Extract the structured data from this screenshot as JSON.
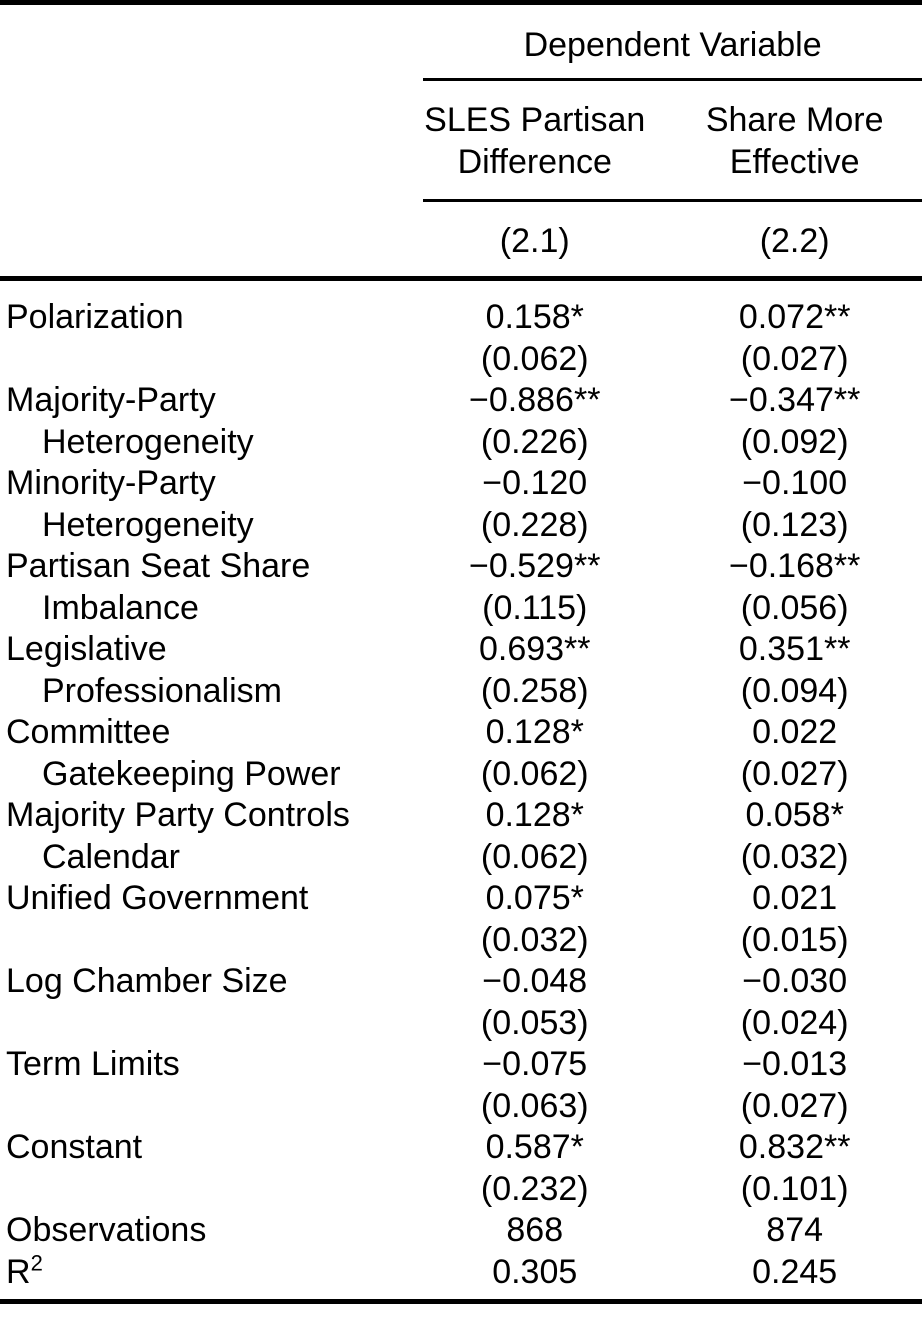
{
  "page": {
    "background_color": "#ffffff",
    "text_color": "#000000",
    "rule_color": "#000000"
  },
  "table": {
    "header": {
      "dependent_variable_label": "Dependent Variable",
      "columns": [
        {
          "title_line1": "SLES Partisan",
          "title_line2": "Difference",
          "model": "(2.1)"
        },
        {
          "title_line1": "Share More",
          "title_line2": "Effective",
          "model": "(2.2)"
        }
      ]
    },
    "rows": [
      {
        "label_line1": "Polarization",
        "label_line2": "",
        "coef": [
          "0.158*",
          "0.072**"
        ],
        "se": [
          "(0.062)",
          "(0.027)"
        ]
      },
      {
        "label_line1": "Majority-Party",
        "label_line2": "Heterogeneity",
        "coef": [
          "−0.886**",
          "−0.347**"
        ],
        "se": [
          "(0.226)",
          "(0.092)"
        ]
      },
      {
        "label_line1": "Minority-Party",
        "label_line2": "Heterogeneity",
        "coef": [
          "−0.120",
          "−0.100"
        ],
        "se": [
          "(0.228)",
          "(0.123)"
        ]
      },
      {
        "label_line1": "Partisan Seat Share",
        "label_line2": "Imbalance",
        "coef": [
          "−0.529**",
          "−0.168**"
        ],
        "se": [
          "(0.115)",
          "(0.056)"
        ]
      },
      {
        "label_line1": "Legislative",
        "label_line2": "Professionalism",
        "coef": [
          "0.693**",
          "0.351**"
        ],
        "se": [
          "(0.258)",
          "(0.094)"
        ]
      },
      {
        "label_line1": "Committee",
        "label_line2": "Gatekeeping Power",
        "coef": [
          "0.128*",
          "0.022"
        ],
        "se": [
          "(0.062)",
          "(0.027)"
        ]
      },
      {
        "label_line1": "Majority Party Controls",
        "label_line2": "Calendar",
        "coef": [
          "0.128*",
          "0.058*"
        ],
        "se": [
          "(0.062)",
          "(0.032)"
        ]
      },
      {
        "label_line1": "Unified Government",
        "label_line2": "",
        "coef": [
          "0.075*",
          "0.021"
        ],
        "se": [
          "(0.032)",
          "(0.015)"
        ]
      },
      {
        "label_line1": "Log Chamber Size",
        "label_line2": "",
        "coef": [
          "−0.048",
          "−0.030"
        ],
        "se": [
          "(0.053)",
          "(0.024)"
        ]
      },
      {
        "label_line1": "Term Limits",
        "label_line2": "",
        "coef": [
          "−0.075",
          "−0.013"
        ],
        "se": [
          "(0.063)",
          "(0.027)"
        ]
      },
      {
        "label_line1": "Constant",
        "label_line2": "",
        "coef": [
          "0.587*",
          "0.832**"
        ],
        "se": [
          "(0.232)",
          "(0.101)"
        ]
      }
    ],
    "stats": [
      {
        "label": "Observations",
        "label_superscript": "",
        "values": [
          "868",
          "874"
        ]
      },
      {
        "label": "R",
        "label_superscript": "2",
        "values": [
          "0.305",
          "0.245"
        ]
      }
    ]
  }
}
